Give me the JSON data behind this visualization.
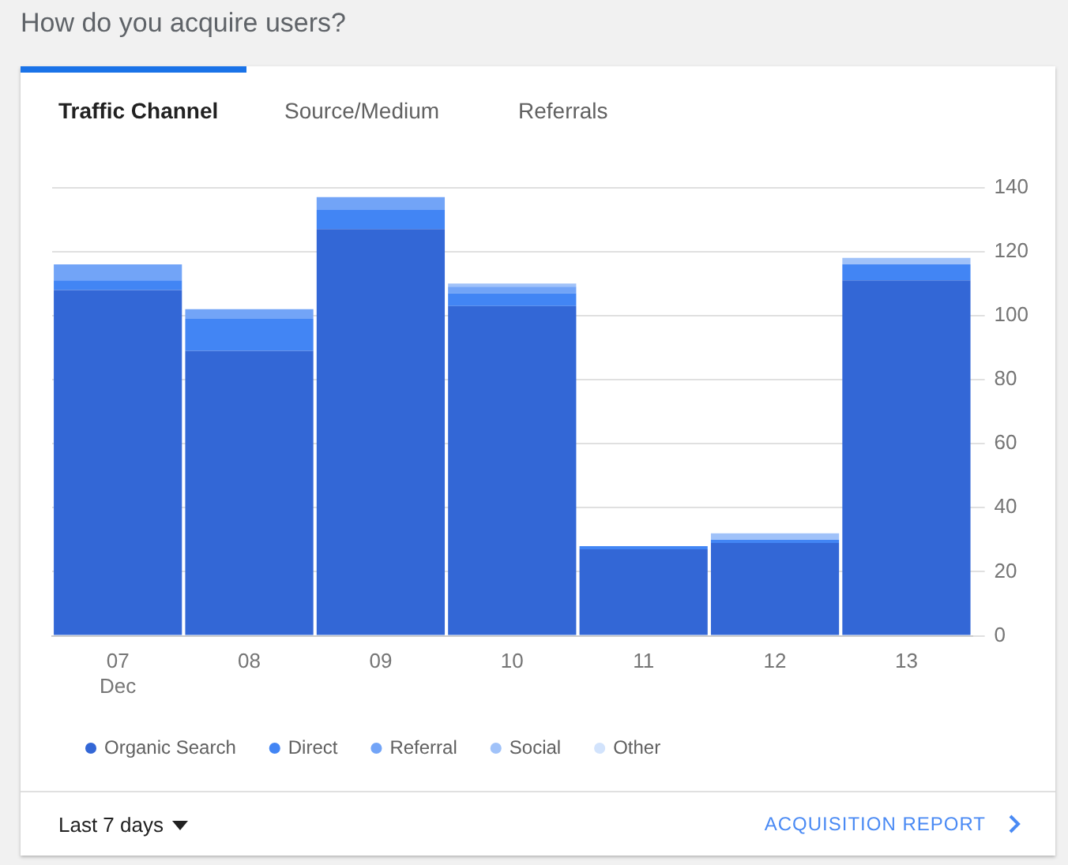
{
  "chart_data": {
    "type": "bar",
    "title": "How do you acquire users?",
    "annotations": [
      "Traffic Channel",
      "Source/Medium",
      "Referrals",
      "Last 7 days",
      "ACQUISITION REPORT"
    ],
    "categories": [
      "07\nDec",
      "08",
      "09",
      "10",
      "11",
      "12",
      "13"
    ],
    "stacked": true,
    "series": [
      {
        "name": "Organic Search",
        "color": "#3367d6",
        "values": [
          108,
          89,
          127,
          103,
          27,
          29,
          111
        ]
      },
      {
        "name": "Direct",
        "color": "#4285f4",
        "values": [
          3,
          10,
          6,
          4,
          1,
          1,
          5
        ]
      },
      {
        "name": "Referral",
        "color": "#72a4f7",
        "values": [
          5,
          3,
          4,
          2,
          0,
          0,
          0
        ]
      },
      {
        "name": "Social",
        "color": "#a0c2f9",
        "values": [
          0,
          0,
          0,
          1,
          0,
          2,
          2
        ]
      },
      {
        "name": "Other",
        "color": "#d2e3fc",
        "values": [
          0,
          0,
          0,
          0,
          0,
          0,
          0
        ]
      }
    ],
    "ylim": [
      0,
      140
    ],
    "yticks": [
      0,
      20,
      40,
      60,
      80,
      100,
      120,
      140
    ],
    "grid": "y",
    "legend": "bottom left"
  }
}
